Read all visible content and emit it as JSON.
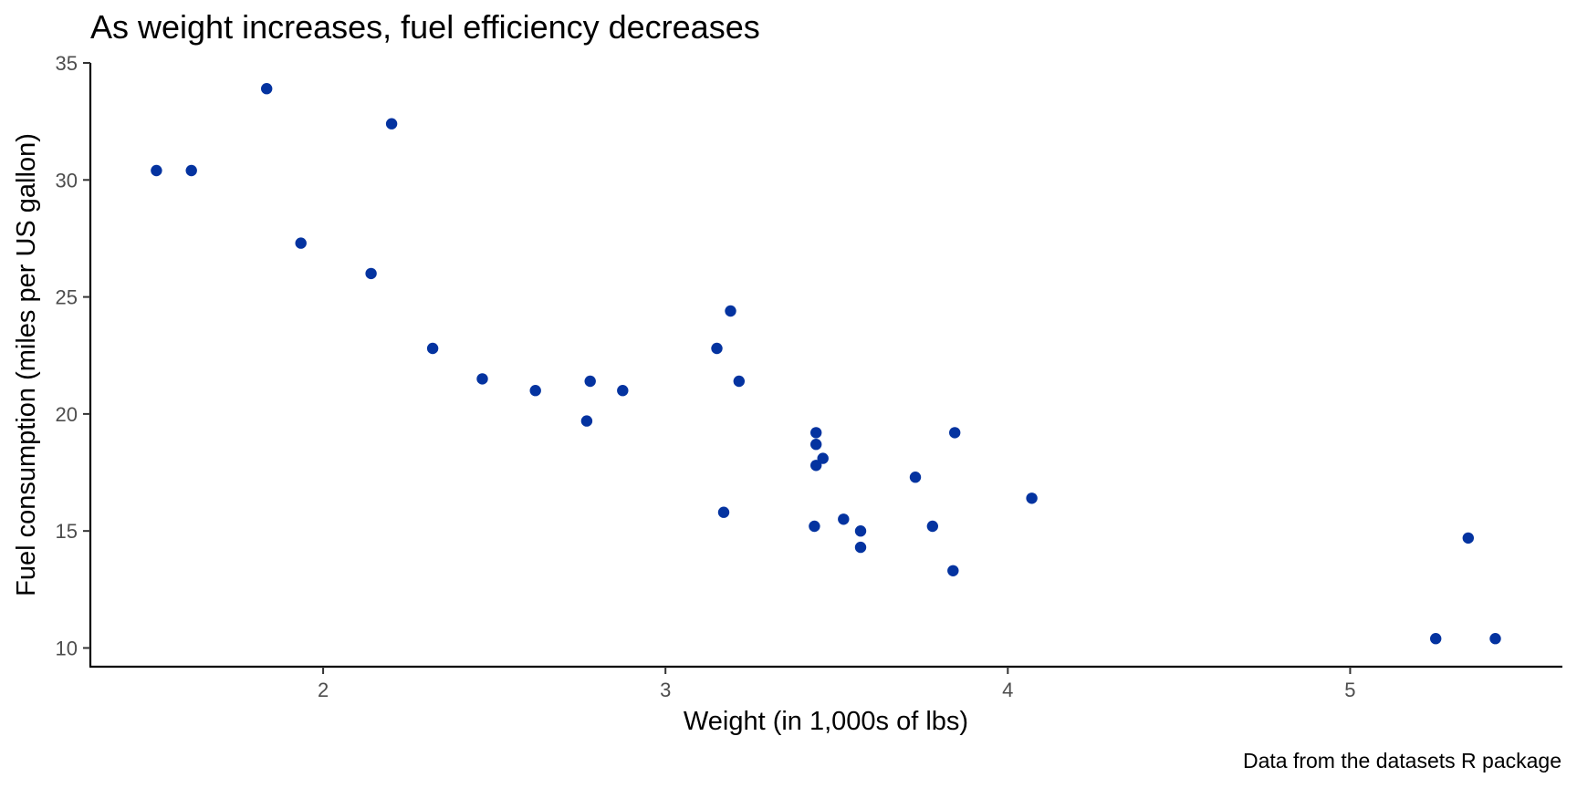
{
  "chart_data": {
    "type": "scatter",
    "title": "As weight increases, fuel efficiency decreases",
    "xlabel": "Weight (in 1,000s of lbs)",
    "ylabel": "Fuel consumption (miles per US gallon)",
    "caption": "Data from the datasets R package",
    "xlim": [
      1.32,
      5.62
    ],
    "ylim": [
      9.2,
      35.0
    ],
    "x_ticks": [
      2,
      3,
      4,
      5
    ],
    "x_tick_labels": [
      "2",
      "3",
      "4",
      "5"
    ],
    "y_ticks": [
      10,
      15,
      20,
      25,
      30,
      35
    ],
    "y_tick_labels": [
      "10",
      "15",
      "20",
      "25",
      "30",
      "35"
    ],
    "grid": false,
    "legend": "none",
    "point_color": "#0433a0",
    "points": [
      {
        "x": 2.62,
        "y": 21.0
      },
      {
        "x": 2.875,
        "y": 21.0
      },
      {
        "x": 2.32,
        "y": 22.8
      },
      {
        "x": 3.215,
        "y": 21.4
      },
      {
        "x": 3.44,
        "y": 18.7
      },
      {
        "x": 3.46,
        "y": 18.1
      },
      {
        "x": 3.57,
        "y": 14.3
      },
      {
        "x": 3.19,
        "y": 24.4
      },
      {
        "x": 3.15,
        "y": 22.8
      },
      {
        "x": 3.44,
        "y": 19.2
      },
      {
        "x": 3.44,
        "y": 17.8
      },
      {
        "x": 4.07,
        "y": 16.4
      },
      {
        "x": 3.73,
        "y": 17.3
      },
      {
        "x": 3.78,
        "y": 15.2
      },
      {
        "x": 5.25,
        "y": 10.4
      },
      {
        "x": 5.424,
        "y": 10.4
      },
      {
        "x": 5.345,
        "y": 14.7
      },
      {
        "x": 2.2,
        "y": 32.4
      },
      {
        "x": 1.615,
        "y": 30.4
      },
      {
        "x": 1.835,
        "y": 33.9
      },
      {
        "x": 2.465,
        "y": 21.5
      },
      {
        "x": 3.52,
        "y": 15.5
      },
      {
        "x": 3.435,
        "y": 15.2
      },
      {
        "x": 3.84,
        "y": 13.3
      },
      {
        "x": 3.845,
        "y": 19.2
      },
      {
        "x": 1.935,
        "y": 27.3
      },
      {
        "x": 2.14,
        "y": 26.0
      },
      {
        "x": 1.513,
        "y": 30.4
      },
      {
        "x": 3.17,
        "y": 15.8
      },
      {
        "x": 2.77,
        "y": 19.7
      },
      {
        "x": 3.57,
        "y": 15.0
      },
      {
        "x": 2.78,
        "y": 21.4
      }
    ]
  }
}
